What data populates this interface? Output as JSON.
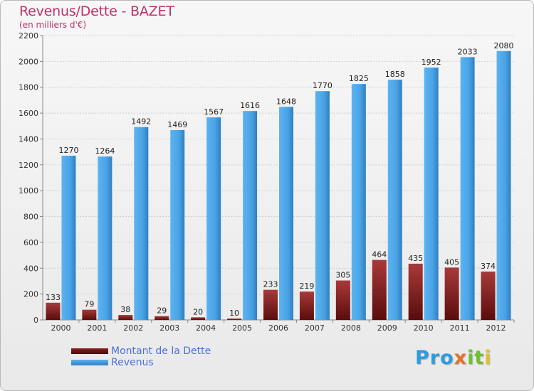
{
  "header": {
    "title": "Revenus/Dette - BAZET",
    "subtitle": "(en milliers d'€)"
  },
  "legend": {
    "dette_label": "Montant de la Dette",
    "revenus_label": "Revenus"
  },
  "logo": {
    "text": "Proxiti",
    "part1": "Pro",
    "part2": "x",
    "part3": "it",
    "part4": "i"
  },
  "colors": {
    "dette": "#7a1414",
    "revenus": "#4aa3e6",
    "title": "#c0306a",
    "legend_text": "#4b6fe0"
  },
  "chart_data": {
    "type": "bar",
    "title": "Revenus/Dette - BAZET",
    "subtitle": "(en milliers d'€)",
    "categories": [
      "2000",
      "2001",
      "2002",
      "2003",
      "2004",
      "2005",
      "2006",
      "2007",
      "2008",
      "2009",
      "2010",
      "2011",
      "2012"
    ],
    "series": [
      {
        "name": "Montant de la Dette",
        "values": [
          133,
          79,
          38,
          29,
          20,
          10,
          233,
          219,
          305,
          464,
          435,
          405,
          374
        ]
      },
      {
        "name": "Revenus",
        "values": [
          1270,
          1264,
          1492,
          1469,
          1567,
          1616,
          1648,
          1770,
          1825,
          1858,
          1952,
          2033,
          2080
        ]
      }
    ],
    "ylim": [
      0,
      2200
    ],
    "yticks": [
      0,
      200,
      400,
      600,
      800,
      1000,
      1200,
      1400,
      1600,
      1800,
      2000,
      2200
    ],
    "grid": true,
    "legend_position": "bottom-left"
  }
}
